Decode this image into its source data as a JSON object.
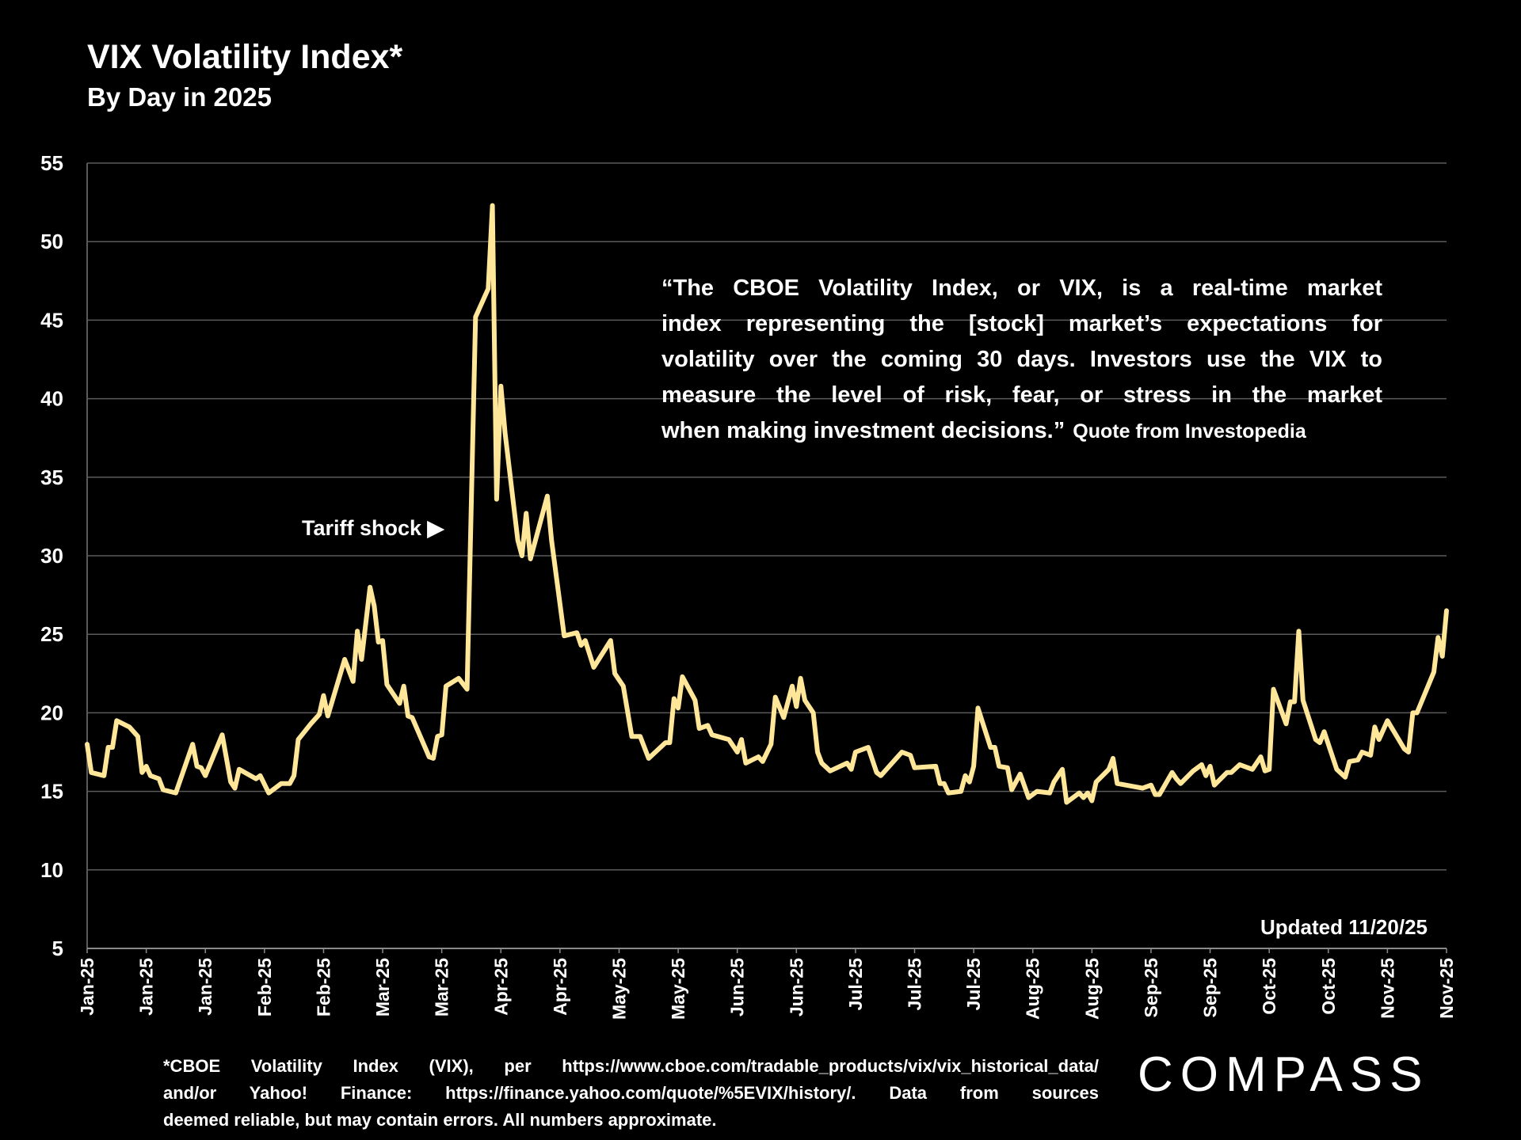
{
  "header": {
    "title": "VIX Volatility Index*",
    "subtitle": "By Day in 2025"
  },
  "quote": {
    "lines": [
      "“The CBOE Volatility Index, or VIX, is a real-time market",
      "index representing the [stock] market’s expectations for",
      "volatility over the coming 30 days. Investors use the VIX to",
      "measure the level of risk, fear, or stress in the market",
      "when making investment decisions.”"
    ],
    "source": "Quote from Investopedia"
  },
  "annotation": "Tariff shock ▶",
  "updated": "Updated 11/20/25",
  "footnote": {
    "lines": [
      "*CBOE Volatility Index (VIX), per https://www.cboe.com/tradable_products/vix/vix_historical_data/",
      "and/or Yahoo! Finance: https://finance.yahoo.com/quote/%5EVIX/history/. Data from sources",
      "deemed reliable, but may contain errors. All numbers approximate."
    ]
  },
  "logo": "COMPASS",
  "colors": {
    "line": "#FFE699",
    "grid": "#5a5a5a",
    "background": "#000000",
    "text": "#FFFFFF"
  },
  "chart_data": {
    "type": "line",
    "title": "VIX Volatility Index*",
    "subtitle": "By Day in 2025",
    "ylim": [
      5,
      55
    ],
    "yticks": [
      5,
      10,
      15,
      20,
      25,
      30,
      35,
      40,
      45,
      50,
      55
    ],
    "grid": true,
    "xtick_labels": [
      "Jan-25",
      "Jan-25",
      "Jan-25",
      "Feb-25",
      "Feb-25",
      "Mar-25",
      "Mar-25",
      "Apr-25",
      "Apr-25",
      "May-25",
      "May-25",
      "Jun-25",
      "Jun-25",
      "Jul-25",
      "Jul-25",
      "Jul-25",
      "Aug-25",
      "Aug-25",
      "Sep-25",
      "Sep-25",
      "Oct-25",
      "Oct-25",
      "Nov-25",
      "Nov-25"
    ],
    "series": [
      {
        "points": [
          [
            "2025-01-02",
            18.0
          ],
          [
            "2025-01-03",
            16.2
          ],
          [
            "2025-01-06",
            16.0
          ],
          [
            "2025-01-07",
            17.8
          ],
          [
            "2025-01-08",
            17.8
          ],
          [
            "2025-01-09",
            19.5
          ],
          [
            "2025-01-12",
            19.1
          ],
          [
            "2025-01-14",
            18.5
          ],
          [
            "2025-01-15",
            16.2
          ],
          [
            "2025-01-16",
            16.6
          ],
          [
            "2025-01-17",
            16.0
          ],
          [
            "2025-01-19",
            15.8
          ],
          [
            "2025-01-20",
            15.1
          ],
          [
            "2025-01-23",
            14.9
          ],
          [
            "2025-01-27",
            18.0
          ],
          [
            "2025-01-28",
            16.6
          ],
          [
            "2025-01-29",
            16.5
          ],
          [
            "2025-01-30",
            16.0
          ],
          [
            "2025-02-03",
            18.6
          ],
          [
            "2025-02-05",
            15.6
          ],
          [
            "2025-02-06",
            15.2
          ],
          [
            "2025-02-07",
            16.4
          ],
          [
            "2025-02-11",
            15.8
          ],
          [
            "2025-02-12",
            16.0
          ],
          [
            "2025-02-14",
            14.9
          ],
          [
            "2025-02-17",
            15.5
          ],
          [
            "2025-02-19",
            15.5
          ],
          [
            "2025-02-20",
            16.0
          ],
          [
            "2025-02-21",
            18.3
          ],
          [
            "2025-02-24",
            19.3
          ],
          [
            "2025-02-26",
            19.9
          ],
          [
            "2025-02-27",
            21.1
          ],
          [
            "2025-02-28",
            19.8
          ],
          [
            "2025-03-04",
            23.4
          ],
          [
            "2025-03-06",
            22.0
          ],
          [
            "2025-03-07",
            25.2
          ],
          [
            "2025-03-08",
            23.4
          ],
          [
            "2025-03-10",
            28.0
          ],
          [
            "2025-03-11",
            26.8
          ],
          [
            "2025-03-12",
            24.5
          ],
          [
            "2025-03-13",
            24.6
          ],
          [
            "2025-03-14",
            21.8
          ],
          [
            "2025-03-17",
            20.6
          ],
          [
            "2025-03-18",
            21.7
          ],
          [
            "2025-03-19",
            19.8
          ],
          [
            "2025-03-20",
            19.7
          ],
          [
            "2025-03-24",
            17.2
          ],
          [
            "2025-03-25",
            17.1
          ],
          [
            "2025-03-26",
            18.5
          ],
          [
            "2025-03-27",
            18.6
          ],
          [
            "2025-03-28",
            21.7
          ],
          [
            "2025-03-31",
            22.2
          ],
          [
            "2025-04-02",
            21.5
          ],
          [
            "2025-04-04",
            45.2
          ],
          [
            "2025-04-07",
            47.0
          ],
          [
            "2025-04-08",
            52.3
          ],
          [
            "2025-04-09",
            33.6
          ],
          [
            "2025-04-10",
            40.8
          ],
          [
            "2025-04-11",
            37.8
          ],
          [
            "2025-04-14",
            31.0
          ],
          [
            "2025-04-15",
            30.0
          ],
          [
            "2025-04-16",
            32.7
          ],
          [
            "2025-04-17",
            29.8
          ],
          [
            "2025-04-21",
            33.8
          ],
          [
            "2025-04-22",
            31.0
          ],
          [
            "2025-04-25",
            24.9
          ],
          [
            "2025-04-28",
            25.1
          ],
          [
            "2025-04-29",
            24.3
          ],
          [
            "2025-04-30",
            24.6
          ],
          [
            "2025-05-02",
            22.9
          ],
          [
            "2025-05-06",
            24.6
          ],
          [
            "2025-05-07",
            22.5
          ],
          [
            "2025-05-09",
            21.7
          ],
          [
            "2025-05-11",
            18.5
          ],
          [
            "2025-05-13",
            18.5
          ],
          [
            "2025-05-15",
            17.1
          ],
          [
            "2025-05-19",
            18.1
          ],
          [
            "2025-05-20",
            18.1
          ],
          [
            "2025-05-21",
            20.9
          ],
          [
            "2025-05-22",
            20.3
          ],
          [
            "2025-05-23",
            22.3
          ],
          [
            "2025-05-26",
            20.8
          ],
          [
            "2025-05-27",
            19.0
          ],
          [
            "2025-05-29",
            19.2
          ],
          [
            "2025-05-30",
            18.6
          ],
          [
            "2025-06-03",
            18.3
          ],
          [
            "2025-06-05",
            17.5
          ],
          [
            "2025-06-06",
            18.3
          ],
          [
            "2025-06-07",
            16.8
          ],
          [
            "2025-06-10",
            17.2
          ],
          [
            "2025-06-11",
            16.9
          ],
          [
            "2025-06-13",
            18.0
          ],
          [
            "2025-06-14",
            21.0
          ],
          [
            "2025-06-16",
            19.7
          ],
          [
            "2025-06-18",
            21.7
          ],
          [
            "2025-06-19",
            20.4
          ],
          [
            "2025-06-20",
            22.2
          ],
          [
            "2025-06-21",
            20.8
          ],
          [
            "2025-06-23",
            20.0
          ],
          [
            "2025-06-24",
            17.5
          ],
          [
            "2025-06-25",
            16.8
          ],
          [
            "2025-06-27",
            16.3
          ],
          [
            "2025-07-01",
            16.8
          ],
          [
            "2025-07-02",
            16.4
          ],
          [
            "2025-07-03",
            17.5
          ],
          [
            "2025-07-06",
            17.8
          ],
          [
            "2025-07-08",
            16.2
          ],
          [
            "2025-07-09",
            16.0
          ],
          [
            "2025-07-11",
            16.6
          ],
          [
            "2025-07-14",
            17.5
          ],
          [
            "2025-07-16",
            17.3
          ],
          [
            "2025-07-17",
            16.5
          ],
          [
            "2025-07-22",
            16.6
          ],
          [
            "2025-07-23",
            15.5
          ],
          [
            "2025-07-24",
            15.5
          ],
          [
            "2025-07-25",
            14.9
          ],
          [
            "2025-07-28",
            15.0
          ],
          [
            "2025-07-29",
            16.0
          ],
          [
            "2025-07-30",
            15.6
          ],
          [
            "2025-07-31",
            16.6
          ],
          [
            "2025-08-01",
            20.3
          ],
          [
            "2025-08-04",
            17.8
          ],
          [
            "2025-08-05",
            17.8
          ],
          [
            "2025-08-06",
            16.6
          ],
          [
            "2025-08-08",
            16.5
          ],
          [
            "2025-08-09",
            15.1
          ],
          [
            "2025-08-11",
            16.1
          ],
          [
            "2025-08-13",
            14.6
          ],
          [
            "2025-08-15",
            15.0
          ],
          [
            "2025-08-18",
            14.9
          ],
          [
            "2025-08-19",
            15.6
          ],
          [
            "2025-08-21",
            16.4
          ],
          [
            "2025-08-22",
            14.3
          ],
          [
            "2025-08-25",
            14.9
          ],
          [
            "2025-08-26",
            14.6
          ],
          [
            "2025-08-27",
            14.9
          ],
          [
            "2025-08-28",
            14.4
          ],
          [
            "2025-08-29",
            15.6
          ],
          [
            "2025-09-01",
            16.4
          ],
          [
            "2025-09-02",
            17.1
          ],
          [
            "2025-09-03",
            15.5
          ],
          [
            "2025-09-09",
            15.2
          ],
          [
            "2025-09-11",
            15.4
          ],
          [
            "2025-09-12",
            14.8
          ],
          [
            "2025-09-13",
            14.8
          ],
          [
            "2025-09-16",
            16.2
          ],
          [
            "2025-09-17",
            15.8
          ],
          [
            "2025-09-18",
            15.5
          ],
          [
            "2025-09-21",
            16.3
          ],
          [
            "2025-09-23",
            16.7
          ],
          [
            "2025-09-24",
            16.0
          ],
          [
            "2025-09-25",
            16.6
          ],
          [
            "2025-09-26",
            15.4
          ],
          [
            "2025-09-29",
            16.2
          ],
          [
            "2025-09-30",
            16.2
          ],
          [
            "2025-10-02",
            16.7
          ],
          [
            "2025-10-05",
            16.4
          ],
          [
            "2025-10-07",
            17.2
          ],
          [
            "2025-10-08",
            16.3
          ],
          [
            "2025-10-09",
            16.4
          ],
          [
            "2025-10-10",
            21.5
          ],
          [
            "2025-10-13",
            19.3
          ],
          [
            "2025-10-14",
            20.7
          ],
          [
            "2025-10-15",
            20.7
          ],
          [
            "2025-10-16",
            25.2
          ],
          [
            "2025-10-17",
            20.8
          ],
          [
            "2025-10-20",
            18.3
          ],
          [
            "2025-10-21",
            18.1
          ],
          [
            "2025-10-22",
            18.8
          ],
          [
            "2025-10-25",
            16.4
          ],
          [
            "2025-10-27",
            15.9
          ],
          [
            "2025-10-28",
            16.9
          ],
          [
            "2025-10-30",
            17.0
          ],
          [
            "2025-10-31",
            17.5
          ],
          [
            "2025-11-02",
            17.3
          ],
          [
            "2025-11-03",
            19.1
          ],
          [
            "2025-11-04",
            18.3
          ],
          [
            "2025-11-06",
            19.5
          ],
          [
            "2025-11-10",
            17.7
          ],
          [
            "2025-11-11",
            17.5
          ],
          [
            "2025-11-12",
            20.0
          ],
          [
            "2025-11-13",
            20.0
          ],
          [
            "2025-11-17",
            22.6
          ],
          [
            "2025-11-18",
            24.8
          ],
          [
            "2025-11-19",
            23.6
          ],
          [
            "2025-11-20",
            26.5
          ]
        ]
      }
    ]
  }
}
